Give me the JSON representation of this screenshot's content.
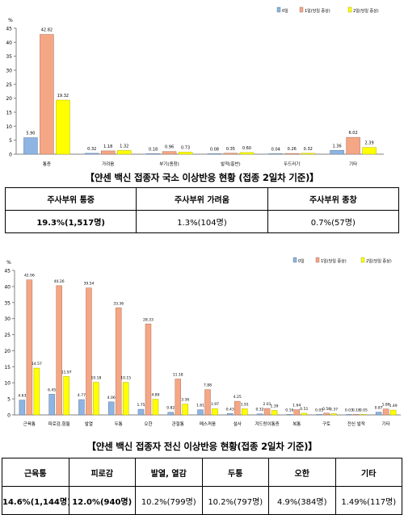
{
  "chart_data": [
    {
      "type": "bar",
      "ylabel": "%",
      "ylim": [
        0,
        45
      ],
      "yticks": [
        0,
        5,
        10,
        15,
        20,
        25,
        30,
        35,
        40,
        45
      ],
      "grid": false,
      "legend_position": "top-right",
      "categories": [
        "통증",
        "가려움",
        "부기(종창)",
        "발적(홍반)",
        "두드러기",
        "기타"
      ],
      "series": [
        {
          "name": "0일",
          "color": "#8DB4E2",
          "values": [
            5.9,
            0.32,
            0.18,
            0.08,
            0.04,
            1.36
          ]
        },
        {
          "name": "1일(당일 증상)",
          "color": "#F5A685",
          "values": [
            42.82,
            1.18,
            0.96,
            0.35,
            0.26,
            6.02
          ]
        },
        {
          "name": "2일(당일 증상)",
          "color": "#FFFF00",
          "values": [
            19.32,
            1.32,
            0.73,
            0.6,
            0.32,
            2.39
          ]
        }
      ],
      "value_labels": [
        [
          "5.90",
          "0.32",
          "0.18",
          "0.08",
          "0.04",
          "1.36"
        ],
        [
          "42.82",
          "1.18",
          "0.96",
          "0.35",
          "0.26",
          "6.02"
        ],
        [
          "19.32",
          "1.32",
          "0.73",
          "0.60",
          "0.32",
          "2.39"
        ]
      ]
    },
    {
      "type": "bar",
      "ylabel": "%",
      "ylim": [
        0,
        45
      ],
      "yticks": [
        0,
        5,
        10,
        15,
        20,
        25,
        30,
        35,
        40,
        45
      ],
      "grid": false,
      "legend_position": "top-right",
      "categories": [
        "근육통",
        "피로감,힘듦",
        "발열",
        "두통",
        "오한",
        "관절통",
        "메스꺼움",
        "설사",
        "겨드랑이통증",
        "복통",
        "구토",
        "전신 발적",
        "기타"
      ],
      "series": [
        {
          "name": "0일",
          "color": "#8DB4E2",
          "values": [
            4.63,
            6.45,
            4.77,
            4.06,
            1.75,
            0.82,
            1.61,
            0.43,
            0.32,
            0.16,
            0.05,
            0.03,
            0.87
          ]
        },
        {
          "name": "1일(당일 증상)",
          "color": "#F5A685",
          "values": [
            42.06,
            40.26,
            39.54,
            33.36,
            28.33,
            11.18,
            7.88,
            4.25,
            2.01,
            1.64,
            0.56,
            0.18,
            1.86
          ]
        },
        {
          "name": "2일(당일 증상)",
          "color": "#FFFF00",
          "values": [
            14.57,
            11.97,
            10.18,
            10.15,
            4.89,
            3.36,
            1.97,
            1.91,
            1.39,
            0.51,
            0.37,
            0.05,
            1.49
          ]
        }
      ],
      "value_labels": [
        [
          "4.63",
          "6.45",
          "4.77",
          "4.06",
          "1.75",
          "0.82",
          "1.61",
          "0.43",
          "0.32",
          "0.16",
          "0.05",
          "0.03",
          "0.87"
        ],
        [
          "42.06",
          "40.26",
          "39.54",
          "33.36",
          "28.33",
          "11.18",
          "7.88",
          "4.25",
          "2.01",
          "1.64",
          "0.56",
          "0.18",
          "1.86"
        ],
        [
          "14.57",
          "11.97",
          "10.18",
          "10.15",
          "4.89",
          "3.36",
          "1.97",
          "1.91",
          "1.39",
          "0.51",
          "0.37",
          "0.05",
          "1.49"
        ]
      ]
    }
  ],
  "captions": {
    "local": "【얀센 백신 접종자 국소 이상반응 현황 (접종 2일차 기준)】",
    "systemic": "【얀센 백신 접종자 전신 이상반응 현황(접종 2일차 기준)】"
  },
  "local_table": {
    "headers": [
      "주사부위 통증",
      "주사부위 가려움",
      "주사부위 종창"
    ],
    "values": [
      "19.3%(1,517명)",
      "1.3%(104명)",
      "0.7%(57명)"
    ]
  },
  "systemic_table": {
    "headers": [
      "근육통",
      "피로감",
      "발열, 열감",
      "두통",
      "오한",
      "기타"
    ],
    "values": [
      "14.6%(1,144명)",
      "12.0%(940명)",
      "10.2%(799명)",
      "10.2%(797명)",
      "4.9%(384명)",
      "1.49%(117명)"
    ]
  }
}
